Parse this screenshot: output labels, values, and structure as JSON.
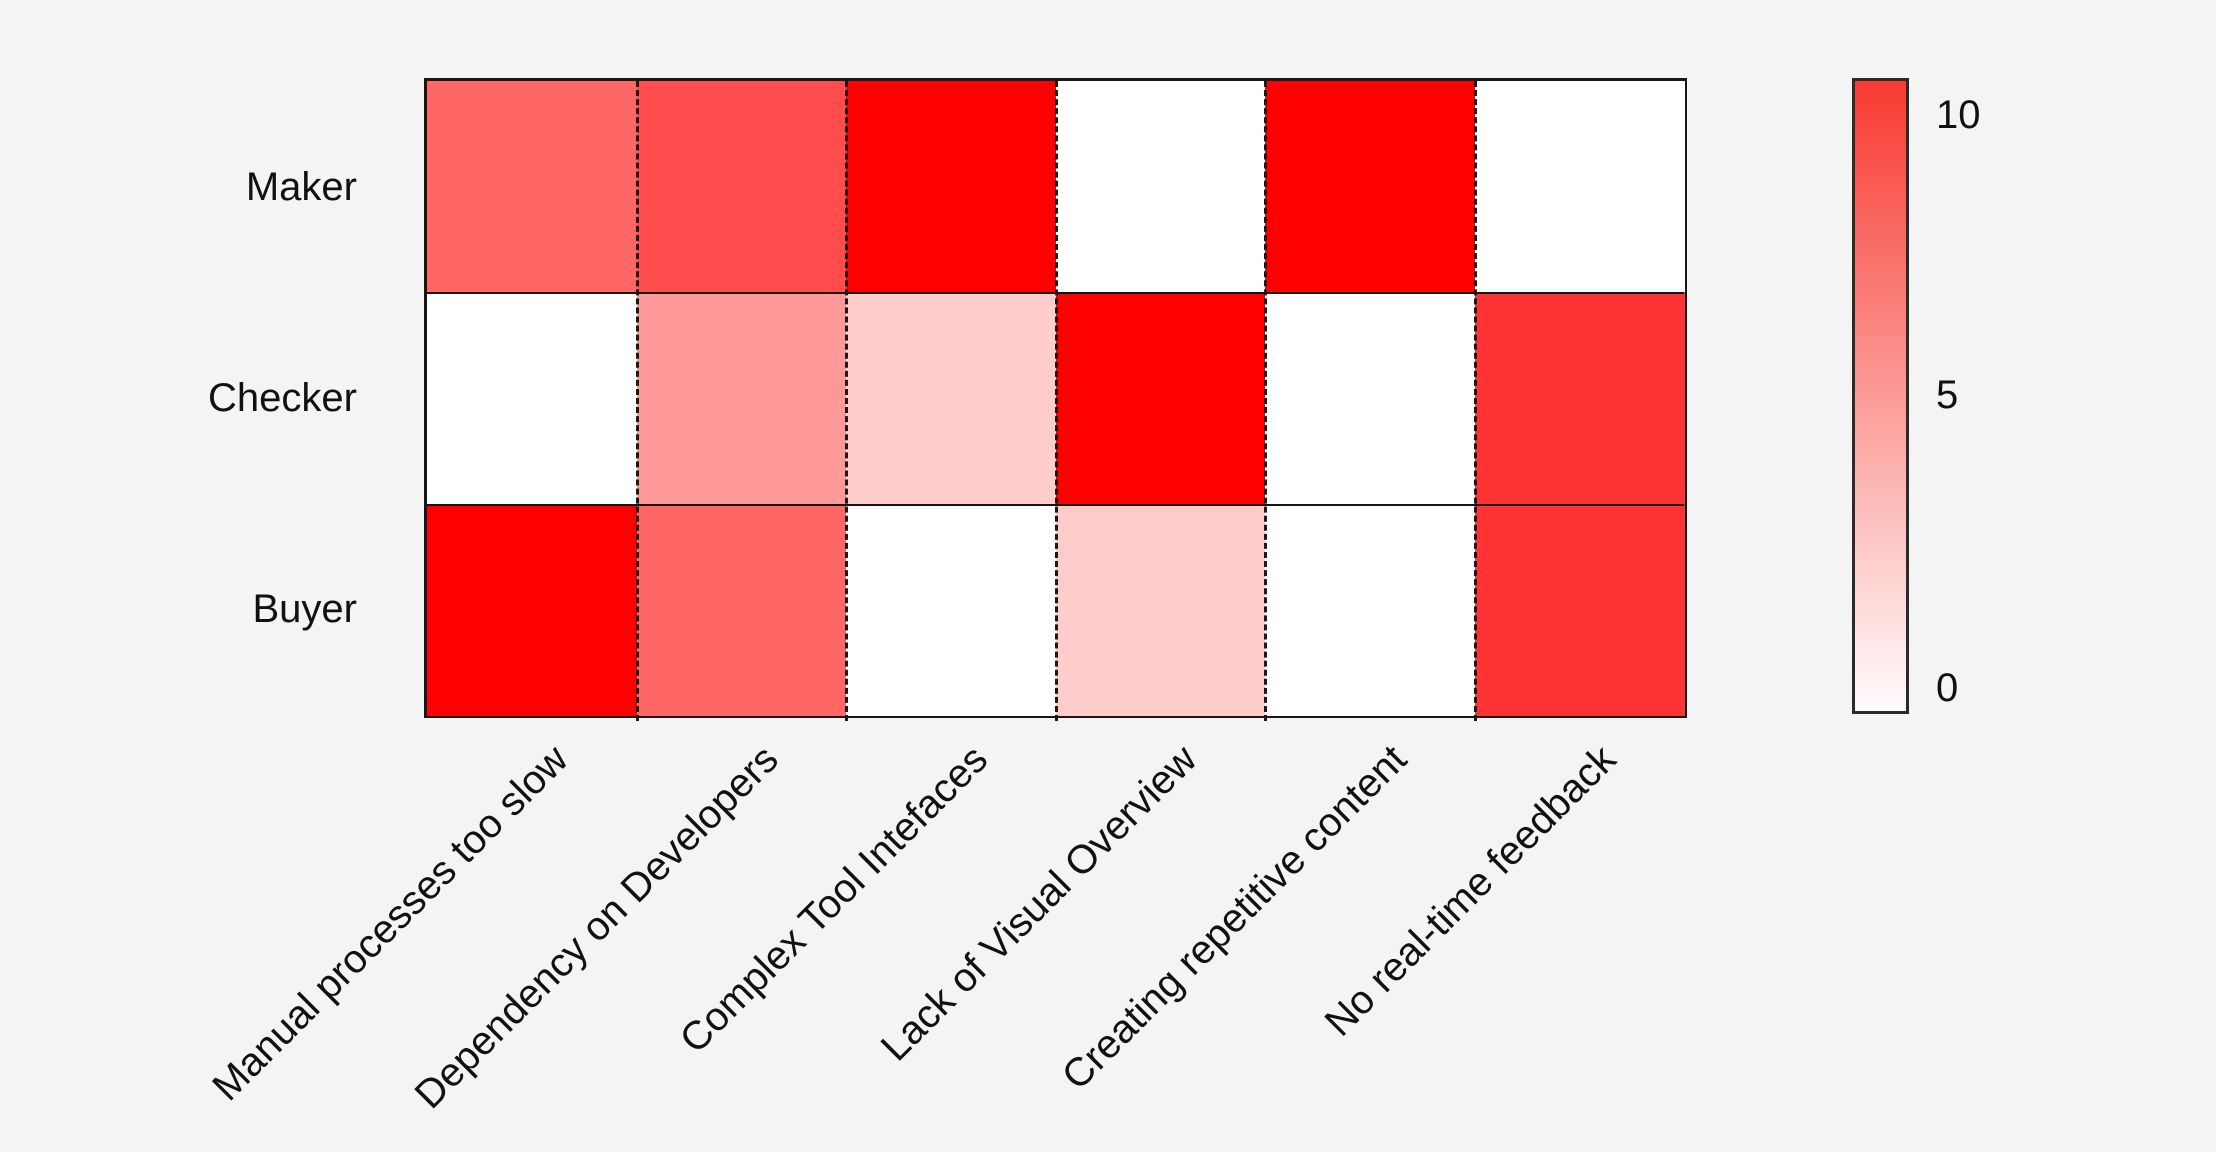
{
  "figure": {
    "background_color": "#f4f4f4",
    "border_color": "#161616",
    "text_color": "#111111"
  },
  "chart_data": {
    "type": "heatmap",
    "title": "",
    "xlabel": "",
    "ylabel": "",
    "rows": [
      "Maker",
      "Checker",
      "Buyer"
    ],
    "columns": [
      "Manual processes too slow",
      "Dependency on Developers",
      "Complex Tool Intefaces",
      "Lack of Visual Overview",
      "Creating repetitive content",
      "No real-time feedback"
    ],
    "values": [
      [
        6,
        7,
        10,
        0,
        10,
        0
      ],
      [
        0,
        4,
        2,
        10,
        0,
        8
      ],
      [
        10,
        6,
        0,
        2,
        0,
        8
      ]
    ],
    "value_range": [
      0,
      10
    ],
    "colorscale": {
      "min_color": "#ffffff",
      "max_color": "#ff0000"
    },
    "grid": {
      "row_divider_style": "solid",
      "column_divider_style": "dashed",
      "legend_position": "right-colorbar"
    },
    "colorbar": {
      "tick_labels": [
        "10",
        "5",
        "0"
      ],
      "tick_values": [
        10,
        5,
        0
      ],
      "top_color": "#f93a32",
      "bottom_color": "#fefcfc"
    }
  }
}
